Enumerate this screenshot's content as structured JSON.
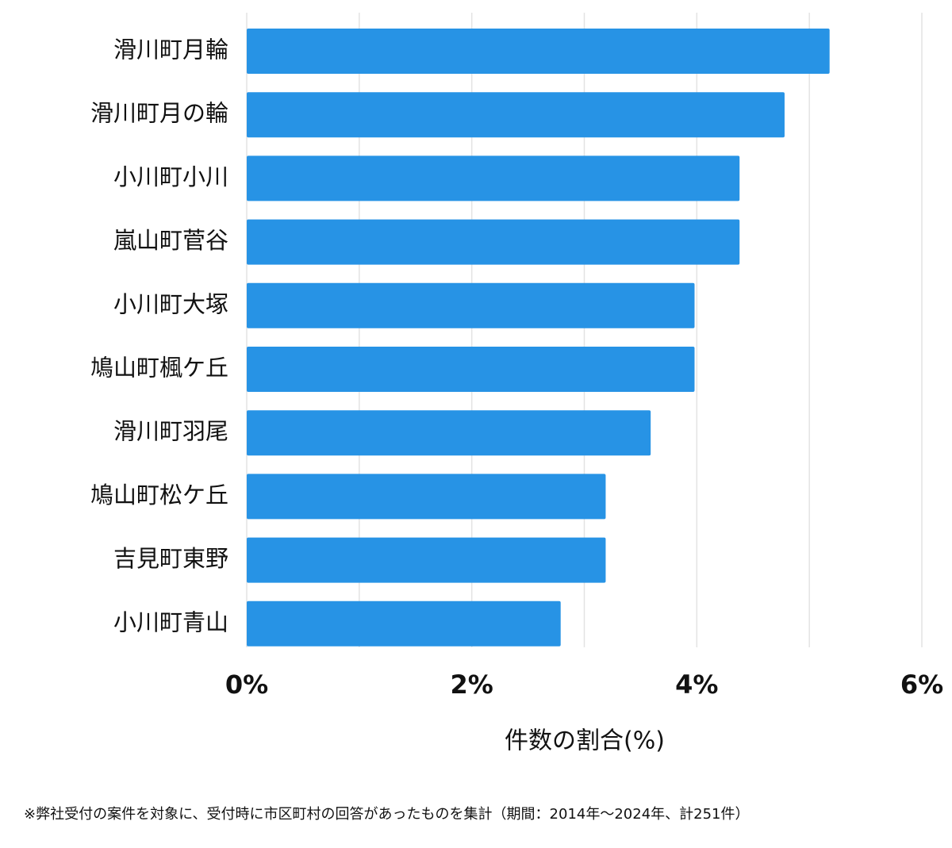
{
  "chart_data": {
    "type": "bar",
    "orientation": "horizontal",
    "categories": [
      "滑川町月輪",
      "滑川町月の輪",
      "小川町小川",
      "嵐山町菅谷",
      "小川町大塚",
      "鳩山町楓ケ丘",
      "滑川町羽尾",
      "鳩山町松ケ丘",
      "吉見町東野",
      "小川町青山"
    ],
    "values": [
      5.18,
      4.78,
      4.38,
      4.38,
      3.98,
      3.98,
      3.59,
      3.19,
      3.19,
      2.79
    ],
    "color": "#2793e5",
    "xlim": [
      0,
      6
    ],
    "xticks": [
      {
        "value": 0,
        "label": "0%"
      },
      {
        "value": 2,
        "label": "2%"
      },
      {
        "value": 4,
        "label": "4%"
      },
      {
        "value": 6,
        "label": "6%"
      }
    ],
    "gridlines": [
      0,
      1,
      2,
      3,
      4,
      5,
      6
    ],
    "grid": true,
    "xlabel": "件数の割合(%)",
    "footnote": "※弊社受付の案件を対象に、受付時に市区町村の回答があったものを集計（期間：2014年～2024年、計251件）"
  }
}
